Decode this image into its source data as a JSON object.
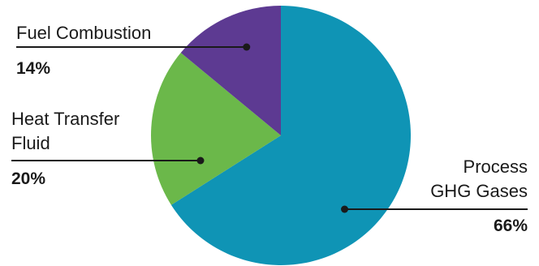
{
  "chart_data": {
    "type": "pie",
    "title": "",
    "start_angle_deg": 0,
    "direction": "clockwise",
    "slices": [
      {
        "name_lines": [
          "Process",
          "GHG Gases"
        ],
        "label": "66%",
        "value": 66,
        "color": "#0f94b5"
      },
      {
        "name_lines": [
          "Heat Transfer",
          "Fluid"
        ],
        "label": "20%",
        "value": 20,
        "color": "#6bb84a"
      },
      {
        "name_lines": [
          "Fuel Combustion"
        ],
        "label": "14%",
        "value": 14,
        "color": "#5d3a92"
      }
    ],
    "leader_line_color": "#1a1a1a"
  }
}
